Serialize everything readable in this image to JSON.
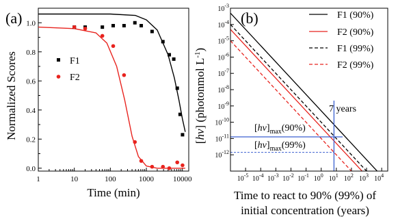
{
  "chart_data": [
    {
      "panel": "(a)",
      "type": "scatter",
      "xlabel": "Time (min)",
      "ylabel": "Normalized Scores",
      "x_scale": "log",
      "xlim": [
        1,
        15000
      ],
      "ylim": [
        -0.02,
        1.1
      ],
      "x_ticks": [
        1,
        10,
        100,
        1000,
        10000
      ],
      "x_tick_labels": [
        "1",
        "10",
        "100",
        "1000",
        "10000"
      ],
      "y_ticks": [
        0.0,
        0.2,
        0.4,
        0.6,
        0.8,
        1.0
      ],
      "y_tick_labels": [
        "0.0",
        "0.2",
        "0.4",
        "0.6",
        "0.8",
        "1.0"
      ],
      "legend_position": "left",
      "series": [
        {
          "name": "F1",
          "color": "#000000",
          "marker": "square",
          "points": [
            [
              10,
              0.97
            ],
            [
              20,
              0.97
            ],
            [
              60,
              0.97
            ],
            [
              120,
              0.98
            ],
            [
              240,
              0.98
            ],
            [
              480,
              1.0
            ],
            [
              720,
              0.98
            ],
            [
              1440,
              0.94
            ],
            [
              2880,
              0.87
            ],
            [
              4320,
              0.78
            ],
            [
              5760,
              0.75
            ],
            [
              7200,
              0.55
            ],
            [
              8640,
              0.37
            ],
            [
              10080,
              0.23
            ]
          ],
          "fit": [
            [
              1,
              1.06
            ],
            [
              100,
              1.06
            ],
            [
              500,
              1.05
            ],
            [
              1000,
              1.02
            ],
            [
              2000,
              0.95
            ],
            [
              4000,
              0.78
            ],
            [
              6000,
              0.62
            ],
            [
              8000,
              0.47
            ],
            [
              10000,
              0.34
            ],
            [
              12000,
              0.25
            ]
          ]
        },
        {
          "name": "F2",
          "color": "#e8231e",
          "marker": "circle",
          "points": [
            [
              10,
              0.97
            ],
            [
              20,
              0.96
            ],
            [
              60,
              0.91
            ],
            [
              120,
              0.84
            ],
            [
              240,
              0.64
            ],
            [
              480,
              0.18
            ],
            [
              720,
              0.05
            ],
            [
              1440,
              0.01
            ],
            [
              2880,
              0.01
            ],
            [
              4320,
              0.0
            ],
            [
              7200,
              0.04
            ],
            [
              10080,
              0.02
            ]
          ],
          "fit": [
            [
              1,
              0.97
            ],
            [
              10,
              0.96
            ],
            [
              40,
              0.93
            ],
            [
              80,
              0.86
            ],
            [
              150,
              0.7
            ],
            [
              250,
              0.47
            ],
            [
              400,
              0.22
            ],
            [
              600,
              0.08
            ],
            [
              1000,
              0.015
            ],
            [
              2000,
              0.0
            ],
            [
              12000,
              0.0
            ]
          ]
        }
      ]
    },
    {
      "panel": "(b)",
      "type": "line",
      "xlabel_line1": "Time to react to 90% (99%) of",
      "xlabel_line2": "initial concentration (years)",
      "ylabel_prefix": "[",
      "ylabel_italic": "hv",
      "ylabel_suffix": "] (photonmol L",
      "ylabel_sup": "-1",
      "ylabel_close": ")",
      "x_scale": "log",
      "y_scale": "log",
      "xlim_exp": [
        -6,
        4.4
      ],
      "ylim_exp": [
        -13,
        -3
      ],
      "x_tick_exponents": [
        -5,
        -4,
        -3,
        -2,
        -1,
        0,
        1,
        2,
        3,
        4
      ],
      "y_tick_exponents": [
        -12,
        -11,
        -10,
        -9,
        -8,
        -7,
        -6,
        -5,
        -4,
        -3
      ],
      "legend_position": "top-right",
      "series": [
        {
          "name": "F1 (90%)",
          "color": "#000000",
          "dash": false,
          "line": [
            [
              -6,
              -3.3
            ],
            [
              4,
              -13.3
            ]
          ]
        },
        {
          "name": "F2 (90%)",
          "color": "#e8231e",
          "dash": false,
          "line": [
            [
              -6,
              -4.3
            ],
            [
              3.3,
              -13.6
            ]
          ]
        },
        {
          "name": "F1 (99%)",
          "color": "#000000",
          "dash": true,
          "line": [
            [
              -6,
              -4.0
            ],
            [
              3.5,
              -13.5
            ]
          ]
        },
        {
          "name": "F2 (99%)",
          "color": "#e8231e",
          "dash": true,
          "line": [
            [
              -6,
              -5.0
            ],
            [
              2.7,
              -13.7
            ]
          ]
        }
      ],
      "annotations": {
        "years_label": "7 years",
        "years_value": 7,
        "hv90_prefix": "[",
        "hv90_italic": "hv",
        "hv90_bracket": "]",
        "hv90_sub": "max",
        "hv90_suffix": "(90%)",
        "hv90_exp": -10.9,
        "hv99_prefix": "[",
        "hv99_italic": "hv",
        "hv99_bracket": "]",
        "hv99_sub": "max",
        "hv99_suffix": "(99%)",
        "hv99_exp": -11.85,
        "guide_color": "#3a5fd0"
      }
    }
  ]
}
